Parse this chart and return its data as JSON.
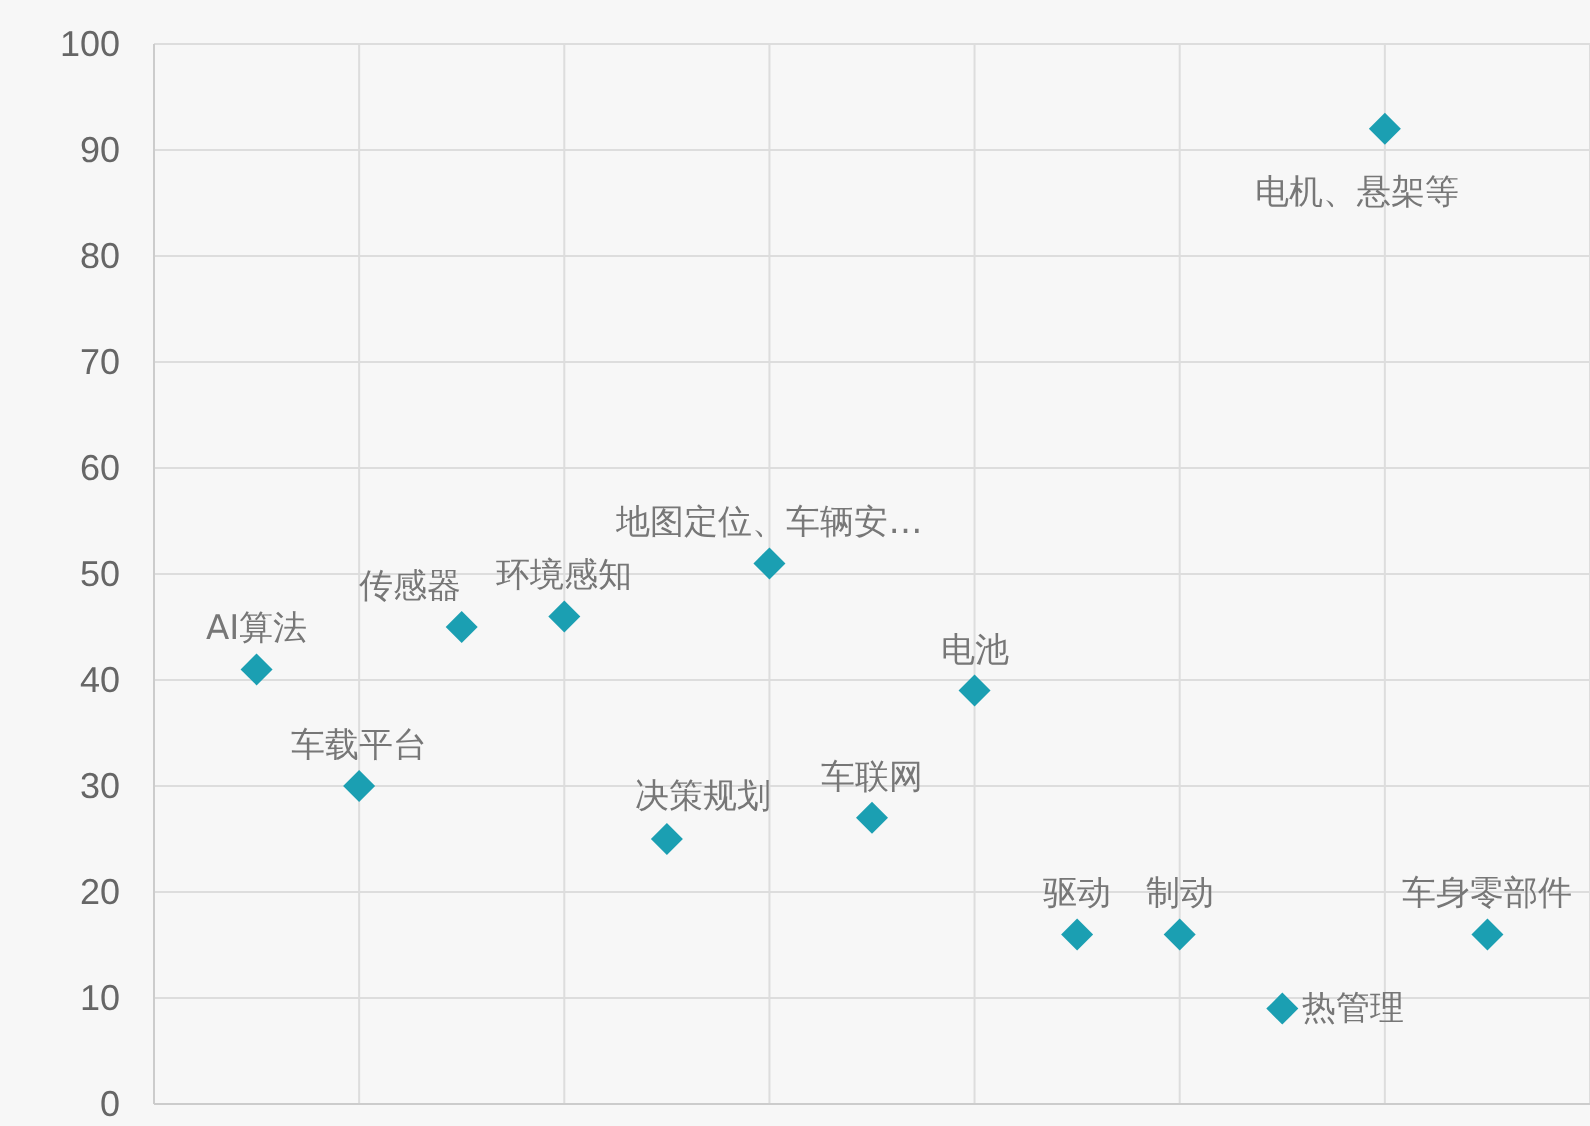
{
  "chart_data": {
    "type": "scatter",
    "categories": [
      null,
      null,
      null,
      null,
      null,
      null,
      null,
      null,
      null,
      null,
      null,
      null,
      null
    ],
    "series": [
      {
        "name": "AI算法",
        "color": "#1b9fb2",
        "values": [
          41,
          null,
          null,
          null,
          null,
          null,
          null,
          null,
          null,
          null,
          null,
          null,
          null
        ]
      },
      {
        "name": "车载平台",
        "color": "#1b9fb2",
        "values": [
          null,
          30,
          null,
          null,
          null,
          null,
          null,
          null,
          null,
          null,
          null,
          null,
          null
        ]
      },
      {
        "name": "传感器",
        "color": "#1b9fb2",
        "values": [
          null,
          null,
          45,
          null,
          null,
          null,
          null,
          null,
          null,
          null,
          null,
          null,
          null
        ]
      },
      {
        "name": "环境感知",
        "color": "#1b9fb2",
        "values": [
          null,
          null,
          null,
          46,
          null,
          null,
          null,
          null,
          null,
          null,
          null,
          null,
          null
        ]
      },
      {
        "name": "决策规划",
        "color": "#1b9fb2",
        "values": [
          null,
          null,
          null,
          null,
          25,
          null,
          null,
          null,
          null,
          null,
          null,
          null,
          null
        ]
      },
      {
        "name": "地图定位、车辆安…",
        "color": "#1b9fb2",
        "values": [
          null,
          null,
          null,
          null,
          null,
          51,
          null,
          null,
          null,
          null,
          null,
          null,
          null
        ]
      },
      {
        "name": "车联网",
        "color": "#1b9fb2",
        "values": [
          null,
          null,
          null,
          null,
          null,
          null,
          27,
          null,
          null,
          null,
          null,
          null,
          null
        ]
      },
      {
        "name": "电池",
        "color": "#1b9fb2",
        "values": [
          null,
          null,
          null,
          null,
          null,
          null,
          null,
          39,
          null,
          null,
          null,
          null,
          null
        ]
      },
      {
        "name": "驱动",
        "color": "#1b9fb2",
        "values": [
          null,
          null,
          null,
          null,
          null,
          null,
          null,
          null,
          16,
          null,
          null,
          null,
          null
        ]
      },
      {
        "name": "制动",
        "color": "#1b9fb2",
        "values": [
          null,
          null,
          null,
          null,
          null,
          null,
          null,
          null,
          null,
          16,
          null,
          null,
          null
        ]
      },
      {
        "name": "热管理",
        "color": "#1b9fb2",
        "values": [
          null,
          null,
          null,
          null,
          null,
          null,
          null,
          null,
          null,
          null,
          9,
          null,
          null
        ]
      },
      {
        "name": "电机、悬架等",
        "color": "#1b9fb2",
        "values": [
          null,
          null,
          null,
          null,
          null,
          null,
          null,
          null,
          null,
          null,
          null,
          92,
          null
        ]
      },
      {
        "name": "车身零部件",
        "color": "#1b9fb2",
        "values": [
          null,
          null,
          null,
          null,
          null,
          null,
          null,
          null,
          null,
          null,
          null,
          null,
          16
        ]
      }
    ],
    "marker": "diamond",
    "grid": true,
    "tick_labels": "y",
    "ylim": [
      0,
      100
    ],
    "yticks": [
      0,
      10,
      20,
      30,
      40,
      50,
      60,
      70,
      80,
      90,
      100
    ]
  }
}
